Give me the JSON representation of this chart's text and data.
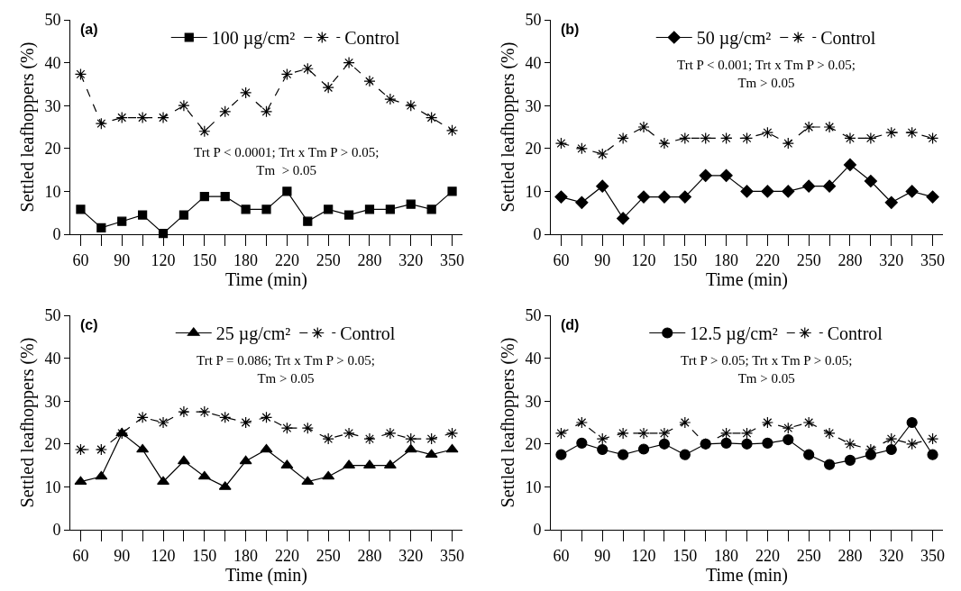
{
  "chart_data": [
    {
      "type": "line",
      "title": "(a)",
      "xlabel": "Time (min)",
      "ylabel": "Settled leafhoppers (%)",
      "categories": [
        "60",
        null,
        "90",
        null,
        "120",
        null,
        "150",
        null,
        "180",
        null,
        "220",
        null,
        "250",
        null,
        "280",
        null,
        "320",
        null,
        "350"
      ],
      "series": [
        {
          "name": "100 µg/cm²",
          "color": "#000000",
          "marker": "square",
          "line_style": "solid",
          "values": [
            5.8,
            1.5,
            3,
            4.5,
            0.2,
            4.5,
            8.8,
            8.8,
            5.8,
            5.8,
            10,
            3,
            5.8,
            4.5,
            5.8,
            5.8,
            7,
            5.8,
            10
          ]
        },
        {
          "name": "Control",
          "color": "#000000",
          "marker": "cross",
          "line_style": "dashed",
          "values": [
            37.3,
            25.8,
            27.2,
            27.2,
            27.2,
            30,
            24,
            28.6,
            33,
            28.6,
            37.3,
            38.6,
            34.2,
            40,
            35.7,
            31.5,
            30,
            27.2,
            24.2
          ]
        }
      ],
      "ylim": [
        0,
        50
      ],
      "yticks": [
        0,
        10,
        20,
        30,
        40,
        50
      ],
      "grid": false,
      "legend": "top",
      "annotations": [
        "Trt P < 0.0001; Trt x Tm P > 0.05;\nTm  > 0.05"
      ]
    },
    {
      "type": "line",
      "title": "(b)",
      "xlabel": "Time (min)",
      "ylabel": "Settled leafhoppers (%)",
      "categories": [
        "60",
        null,
        "90",
        null,
        "120",
        null,
        "150",
        null,
        "180",
        null,
        "220",
        null,
        "250",
        null,
        "280",
        null,
        "320",
        null,
        "350"
      ],
      "series": [
        {
          "name": "50 µg/cm²",
          "color": "#000000",
          "marker": "diamond",
          "line_style": "solid",
          "values": [
            8.7,
            7.4,
            11.2,
            3.7,
            8.7,
            8.7,
            8.7,
            13.7,
            13.7,
            10,
            10,
            10,
            11.2,
            11.2,
            16.2,
            12.4,
            7.4,
            10,
            8.7
          ]
        },
        {
          "name": "Control",
          "color": "#000000",
          "marker": "cross",
          "line_style": "dashed",
          "values": [
            21.2,
            20,
            18.7,
            22.4,
            25,
            21.2,
            22.4,
            22.4,
            22.4,
            22.4,
            23.7,
            21.2,
            25,
            25,
            22.4,
            22.4,
            23.7,
            23.7,
            22.4
          ]
        }
      ],
      "ylim": [
        0,
        50
      ],
      "yticks": [
        0,
        10,
        20,
        30,
        40,
        50
      ],
      "grid": false,
      "legend": "top",
      "annotations": [
        "Trt P < 0.001; Trt x Tm P > 0.05;\nTm > 0.05"
      ]
    },
    {
      "type": "line",
      "title": "(c)",
      "xlabel": "Time (min)",
      "ylabel": "Settled leafhoppers (%)",
      "categories": [
        "60",
        null,
        "90",
        null,
        "120",
        null,
        "150",
        null,
        "180",
        null,
        "220",
        null,
        "250",
        null,
        "280",
        null,
        "320",
        null,
        "350"
      ],
      "series": [
        {
          "name": "25 µg/cm²",
          "color": "#000000",
          "marker": "triangle",
          "line_style": "solid",
          "values": [
            11.2,
            12.4,
            22.5,
            18.7,
            11.2,
            16,
            12.4,
            10,
            16,
            18.7,
            15,
            11.2,
            12.4,
            15,
            15,
            15,
            18.7,
            17.5,
            18.7
          ]
        },
        {
          "name": "Control",
          "color": "#000000",
          "marker": "cross",
          "line_style": "dashed",
          "values": [
            18.7,
            18.7,
            22.5,
            26.2,
            25,
            27.5,
            27.5,
            26.2,
            25,
            26.2,
            23.7,
            23.7,
            21.2,
            22.5,
            21.2,
            22.5,
            21.2,
            21.2,
            22.5
          ]
        }
      ],
      "ylim": [
        0,
        50
      ],
      "yticks": [
        0,
        10,
        20,
        30,
        40,
        50
      ],
      "grid": false,
      "legend": "top",
      "annotations": [
        "Trt P = 0.086; Trt x Tm P > 0.05;\nTm > 0.05"
      ]
    },
    {
      "type": "line",
      "title": "(d)",
      "xlabel": "Time (min)",
      "ylabel": "Settled leafhoppers (%)",
      "categories": [
        "60",
        null,
        "90",
        null,
        "120",
        null,
        "150",
        null,
        "180",
        null,
        "220",
        null,
        "250",
        null,
        "280",
        null,
        "320",
        null,
        "350"
      ],
      "series": [
        {
          "name": "12.5 µg/cm²",
          "color": "#000000",
          "marker": "circle",
          "line_style": "solid",
          "values": [
            17.5,
            20.2,
            18.7,
            17.5,
            18.8,
            20,
            17.5,
            20,
            20.2,
            20,
            20.2,
            21,
            17.5,
            15.2,
            16.2,
            17.5,
            18.7,
            25,
            17.5
          ]
        },
        {
          "name": "Control",
          "color": "#000000",
          "marker": "cross",
          "line_style": "dashed",
          "values": [
            22.5,
            25,
            21.2,
            22.5,
            22.5,
            22.5,
            25,
            20,
            22.5,
            22.5,
            25,
            23.7,
            25,
            22.5,
            20,
            18.7,
            21.2,
            20,
            21.2
          ]
        }
      ],
      "ylim": [
        0,
        50
      ],
      "yticks": [
        0,
        10,
        20,
        30,
        40,
        50
      ],
      "grid": false,
      "legend": "top",
      "annotations": [
        "Trt P > 0.05; Trt x Tm P > 0.05;\nTm > 0.05"
      ]
    }
  ]
}
